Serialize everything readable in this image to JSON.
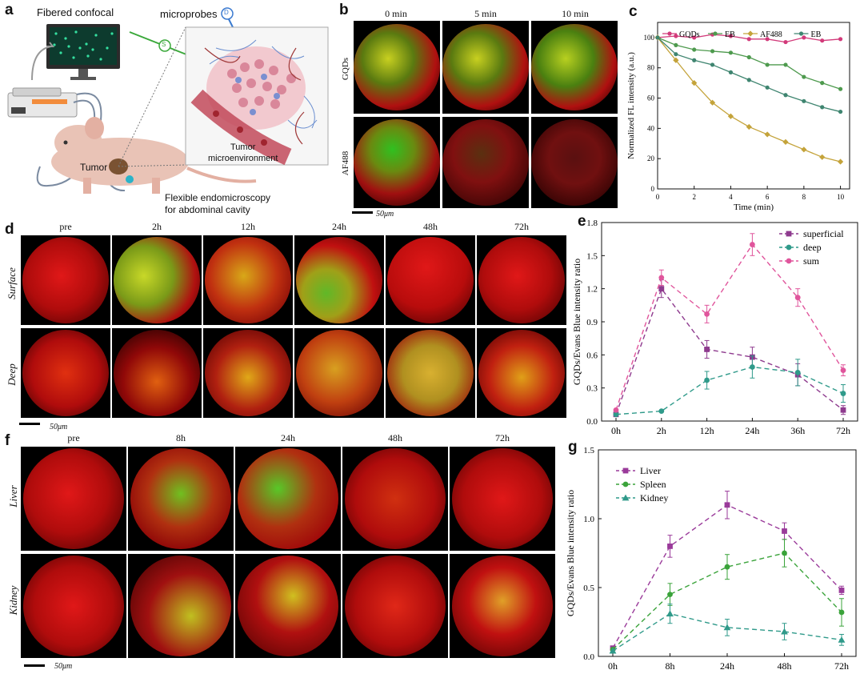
{
  "panel_letters": {
    "a": "a",
    "b": "b",
    "c": "c",
    "d": "d",
    "e": "e",
    "f": "f",
    "g": "g"
  },
  "panel_a": {
    "fibered_confocal": "Fibered confocal",
    "microprobes": "microprobes",
    "tumor": "Tumor",
    "tumor_microenv_1": "Tumor",
    "tumor_microenv_2": "microenvironment",
    "flex_1": "Flexible endomicroscopy",
    "flex_2": "for abdominal cavity",
    "probe_d": "D",
    "probe_s": "S"
  },
  "panel_b": {
    "times": [
      "0 min",
      "5 min",
      "10 min"
    ],
    "rows": [
      "GQDs",
      "AF488"
    ],
    "scale": "50μm"
  },
  "panel_d": {
    "times": [
      "pre",
      "2h",
      "12h",
      "24h",
      "48h",
      "72h"
    ],
    "rows": [
      "Surface",
      "Deep"
    ],
    "scale": "50μm"
  },
  "panel_f": {
    "times": [
      "pre",
      "8h",
      "24h",
      "48h",
      "72h"
    ],
    "rows": [
      "Liver",
      "Kidney"
    ],
    "scale": "50μm"
  },
  "chart_data": [
    {
      "panel": "c",
      "type": "line",
      "xlabel": "Time (min)",
      "ylabel": "Normalized FL intensity (a.u.)",
      "x": [
        0,
        1,
        2,
        3,
        4,
        5,
        6,
        7,
        8,
        9,
        10
      ],
      "xticks": [
        0,
        2,
        4,
        6,
        8,
        10
      ],
      "yticks": [
        0,
        20,
        40,
        60,
        80,
        100
      ],
      "xlim": [
        0,
        10.5
      ],
      "ylim": [
        0,
        110
      ],
      "legend_position": "top",
      "series": [
        {
          "name": "GQDs",
          "color": "#d23a7a",
          "marker": "circle",
          "values": [
            100,
            101,
            100,
            102,
            101,
            99,
            99,
            97,
            100,
            98,
            99
          ]
        },
        {
          "name": "EB",
          "color": "#4e9a4e",
          "marker": "circle",
          "values": [
            100,
            95,
            92,
            91,
            90,
            87,
            82,
            82,
            74,
            70,
            66
          ]
        },
        {
          "name": "AF488",
          "color": "#c4a33a",
          "marker": "diamond",
          "values": [
            100,
            85,
            70,
            57,
            48,
            41,
            36,
            31,
            26,
            21,
            18
          ]
        },
        {
          "name": "EB",
          "color": "#3f8570",
          "marker": "circle",
          "values": [
            100,
            89,
            85,
            82,
            77,
            72,
            67,
            62,
            58,
            54,
            51
          ]
        }
      ]
    },
    {
      "panel": "e",
      "type": "line",
      "ylabel": "GQDs/Evans Blue intensity ratio",
      "categories": [
        "0h",
        "2h",
        "12h",
        "24h",
        "36h",
        "72h"
      ],
      "yticks": [
        "0.0",
        "0.3",
        "0.6",
        "0.9",
        "1.2",
        "1.5",
        "1.8"
      ],
      "ylim": [
        0,
        1.8
      ],
      "legend_position": "top-right",
      "series": [
        {
          "name": "superficial",
          "color": "#8e3a8e",
          "marker": "square",
          "values": [
            0.06,
            1.2,
            0.65,
            0.58,
            0.42,
            0.1
          ],
          "errors": [
            0,
            0.08,
            0.08,
            0.09,
            0.1,
            0.04
          ]
        },
        {
          "name": "deep",
          "color": "#2f9a8a",
          "marker": "circle",
          "values": [
            0.06,
            0.09,
            0.37,
            0.49,
            0.44,
            0.25
          ],
          "errors": [
            0,
            0,
            0.08,
            0.1,
            0.12,
            0.08
          ]
        },
        {
          "name": "sum",
          "color": "#e0559c",
          "marker": "circle",
          "values": [
            0.1,
            1.3,
            0.97,
            1.6,
            1.12,
            0.46
          ],
          "errors": [
            0,
            0.07,
            0.08,
            0.1,
            0.08,
            0.05
          ]
        }
      ]
    },
    {
      "panel": "g",
      "type": "line",
      "ylabel": "GQDs/Evans Blue intensity ratio",
      "categories": [
        "0h",
        "8h",
        "24h",
        "48h",
        "72h"
      ],
      "yticks": [
        "0.0",
        "0.5",
        "1.0",
        "1.5"
      ],
      "ylim": [
        0,
        1.5
      ],
      "legend_position": "top-left",
      "series": [
        {
          "name": "Liver",
          "color": "#9a3a9a",
          "marker": "square",
          "values": [
            0.06,
            0.8,
            1.1,
            0.91,
            0.48
          ],
          "errors": [
            0,
            0.08,
            0.1,
            0.06,
            0.03
          ]
        },
        {
          "name": "Spleen",
          "color": "#3aa33a",
          "marker": "circle",
          "values": [
            0.05,
            0.45,
            0.65,
            0.75,
            0.32
          ],
          "errors": [
            0,
            0.08,
            0.09,
            0.1,
            0.1
          ]
        },
        {
          "name": "Kidney",
          "color": "#2f9a8a",
          "marker": "triangle",
          "values": [
            0.04,
            0.31,
            0.21,
            0.18,
            0.12
          ],
          "errors": [
            0,
            0.07,
            0.06,
            0.06,
            0.04
          ]
        }
      ]
    }
  ]
}
